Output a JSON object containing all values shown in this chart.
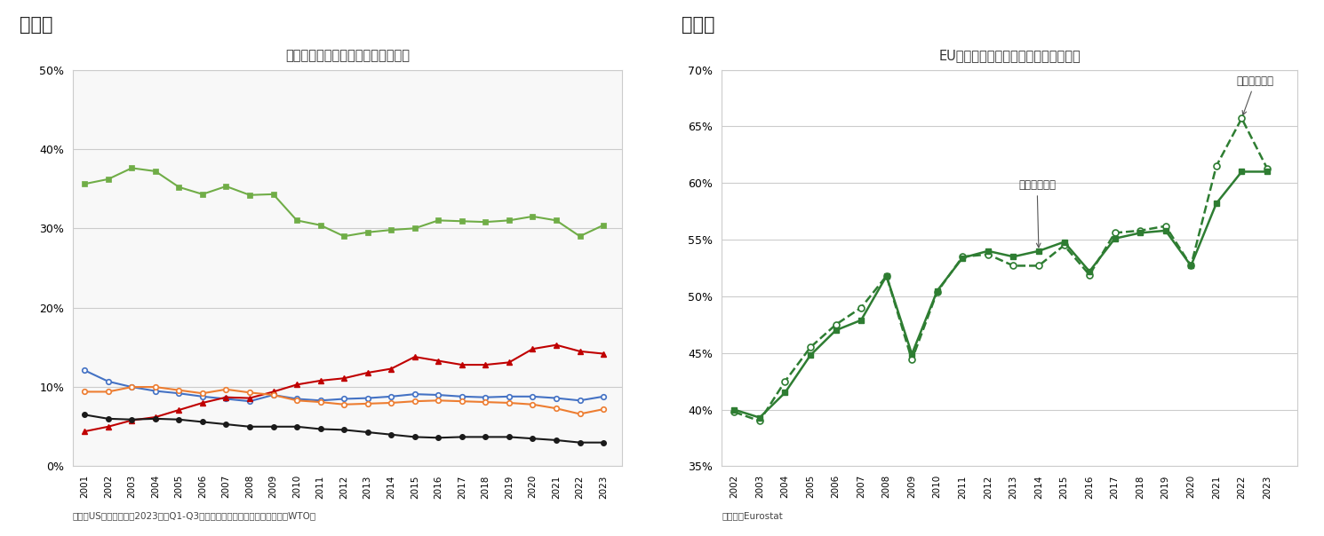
{
  "chart3": {
    "title": "世界の輸出に占めるシェア（総額）",
    "years": [
      2001,
      2002,
      2003,
      2004,
      2005,
      2006,
      2007,
      2008,
      2009,
      2010,
      2011,
      2012,
      2013,
      2014,
      2015,
      2016,
      2017,
      2018,
      2019,
      2020,
      2021,
      2022,
      2023
    ],
    "america": [
      0.121,
      0.107,
      0.1,
      0.095,
      0.092,
      0.088,
      0.085,
      0.082,
      0.09,
      0.085,
      0.083,
      0.085,
      0.086,
      0.088,
      0.091,
      0.09,
      0.088,
      0.087,
      0.088,
      0.088,
      0.086,
      0.083,
      0.088
    ],
    "china": [
      0.044,
      0.05,
      0.058,
      0.062,
      0.071,
      0.08,
      0.087,
      0.086,
      0.094,
      0.103,
      0.108,
      0.111,
      0.118,
      0.123,
      0.138,
      0.133,
      0.128,
      0.128,
      0.131,
      0.148,
      0.153,
      0.145,
      0.142
    ],
    "eu": [
      0.356,
      0.362,
      0.376,
      0.372,
      0.352,
      0.343,
      0.353,
      0.342,
      0.343,
      0.31,
      0.304,
      0.29,
      0.295,
      0.298,
      0.3,
      0.31,
      0.309,
      0.308,
      0.31,
      0.315,
      0.31,
      0.29,
      0.304
    ],
    "japan": [
      0.065,
      0.06,
      0.059,
      0.06,
      0.059,
      0.056,
      0.053,
      0.05,
      0.05,
      0.05,
      0.047,
      0.046,
      0.043,
      0.04,
      0.037,
      0.036,
      0.037,
      0.037,
      0.037,
      0.035,
      0.033,
      0.03,
      0.03
    ],
    "germany": [
      0.094,
      0.094,
      0.1,
      0.1,
      0.096,
      0.092,
      0.097,
      0.093,
      0.09,
      0.083,
      0.081,
      0.078,
      0.079,
      0.08,
      0.082,
      0.083,
      0.082,
      0.081,
      0.08,
      0.078,
      0.073,
      0.066,
      0.072
    ],
    "note": "（注）USドルベース、2023年はQ1-Q3の累計値　（資料）世界貿易機関（WTO）",
    "ylim": [
      0,
      0.5
    ],
    "yticks": [
      0.0,
      0.1,
      0.2,
      0.3,
      0.4,
      0.5
    ]
  },
  "chart4": {
    "title": "EUの輸出入総額に占める域内のシェア",
    "years": [
      2002,
      2003,
      2004,
      2005,
      2006,
      2007,
      2008,
      2009,
      2010,
      2011,
      2012,
      2013,
      2014,
      2015,
      2016,
      2017,
      2018,
      2019,
      2020,
      2021,
      2022,
      2023
    ],
    "export": [
      0.4,
      0.393,
      0.415,
      0.448,
      0.47,
      0.479,
      0.518,
      0.449,
      0.505,
      0.534,
      0.54,
      0.535,
      0.54,
      0.548,
      0.522,
      0.551,
      0.556,
      0.558,
      0.527,
      0.582,
      0.61,
      0.61
    ],
    "import_": [
      0.398,
      0.39,
      0.425,
      0.455,
      0.475,
      0.49,
      0.518,
      0.444,
      0.504,
      0.535,
      0.537,
      0.527,
      0.527,
      0.545,
      0.519,
      0.556,
      0.558,
      0.562,
      0.527,
      0.615,
      0.657,
      0.613
    ],
    "note": "（資料）Eurostat",
    "ylim": [
      0.35,
      0.7
    ],
    "yticks": [
      0.35,
      0.4,
      0.45,
      0.5,
      0.55,
      0.6,
      0.65,
      0.7
    ]
  },
  "colors": {
    "america": "#4472C4",
    "china": "#C00000",
    "eu": "#70AD47",
    "japan": "#1A1A1A",
    "germany": "#ED7D31",
    "export": "#2E7D32",
    "import_": "#2E7D32"
  },
  "heading3": "図表３",
  "heading4": "図表４",
  "background": "#FFFFFF",
  "plot_bg": "#FFFFFF",
  "grid_color": "#CCCCCC",
  "box_color": "#CCCCCC"
}
